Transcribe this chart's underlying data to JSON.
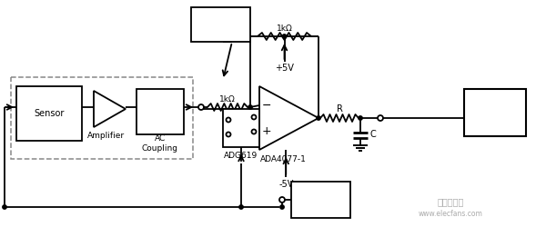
{
  "bg_color": "#ffffff",
  "fig_width": 6.0,
  "fig_height": 2.61,
  "dpi": 100,
  "lc": "#000000",
  "lw": 1.3,
  "labels": {
    "sensor": "Sensor",
    "amplifier": "Amplifier",
    "ac_coupling": "AC\nCoupling",
    "adg619": "ADG619",
    "ada4077": "ADA4077-1",
    "plus5v": "+5V",
    "minus5v": "-5V",
    "r1k_top": "1kΩ",
    "r1k_mid": "1kΩ",
    "r_label": "R",
    "c_label": "C",
    "watermark1": "电子发烧友",
    "watermark2": "www.elecfans.com"
  }
}
